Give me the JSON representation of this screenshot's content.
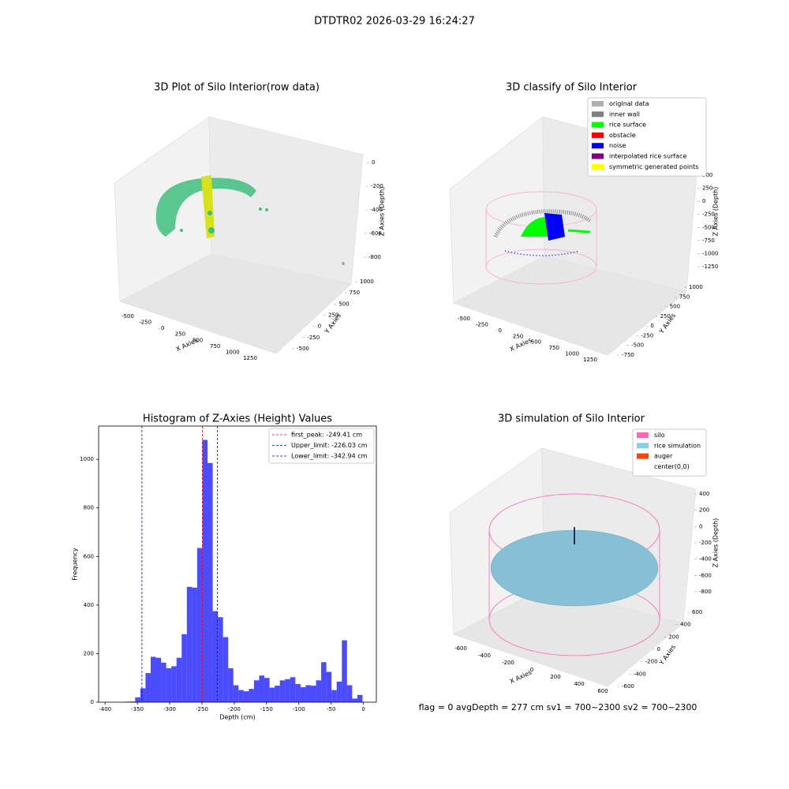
{
  "suptitle": "DTDTR02 2026-03-29 16:24:27",
  "footer": "flag = 0     avgDepth = 277 cm  sv1 = 700~2300  sv2 = 700~2300",
  "chart_data": [
    {
      "type": "scatter3d",
      "title": "3D Plot of Silo Interior(row data)",
      "xlabel": "X Axies",
      "ylabel": "Y Axies",
      "zlabel": "Z Axies (Depth)",
      "xticks": [
        -500,
        -250,
        0,
        250,
        500,
        750,
        1000,
        1250
      ],
      "yticks": [
        -500,
        -250,
        0,
        250,
        500,
        750,
        1000
      ],
      "zticks": [
        0,
        -200,
        -400,
        -600,
        -800
      ]
    },
    {
      "type": "scatter3d",
      "title": "3D classify of Silo Interior",
      "xlabel": "X Axies",
      "ylabel": "Y Axies",
      "zlabel": "Z Axies (Depth)",
      "xticks": [
        -500,
        -250,
        0,
        250,
        500,
        750,
        1000,
        1250
      ],
      "yticks": [
        -750,
        -500,
        -250,
        0,
        250,
        500,
        750,
        1000
      ],
      "zticks": [
        500,
        250,
        0,
        -250,
        -500,
        -750,
        -1000,
        -1250
      ],
      "legend": [
        {
          "name": "original data",
          "color": "#b0b0b0"
        },
        {
          "name": "inner wall",
          "color": "#808080"
        },
        {
          "name": "rice surface",
          "color": "#00ff00"
        },
        {
          "name": "obstacle",
          "color": "#ff0000"
        },
        {
          "name": "noise",
          "color": "#0000ff"
        },
        {
          "name": "interpolated rice surface",
          "color": "#800080"
        },
        {
          "name": "symmetric generated points",
          "color": "#ffff00"
        }
      ]
    },
    {
      "type": "histogram",
      "title": "Histogram of Z-Axies (Height) Values",
      "xlabel": "Depth (cm)",
      "ylabel": "Frequency",
      "color": "#0000ff",
      "alpha": 0.7,
      "bins": [
        -369.41,
        -361.41,
        -353.41,
        -345.41,
        -337.41,
        -329.41,
        -321.41,
        -313.41,
        -305.41,
        -297.41,
        -289.41,
        -281.41,
        -273.41,
        -265.41,
        -257.41,
        -249.41,
        -241.41,
        -233.41,
        -225.41,
        -217.41,
        -209.41,
        -201.41,
        -193.41,
        -185.41,
        -177.41,
        -169.41,
        -161.41,
        -153.41,
        -145.41,
        -137.41,
        -129.41,
        -121.41,
        -113.41,
        -105.41,
        -97.41,
        -89.41,
        -81.41,
        -73.41,
        -65.41,
        -57.41,
        -49.41,
        -41.41,
        -33.41,
        -25.41,
        -17.41,
        -9.41,
        -1.41
      ],
      "values": [
        2,
        3,
        20,
        57,
        120,
        187,
        183,
        163,
        140,
        148,
        183,
        280,
        475,
        472,
        635,
        1080,
        985,
        375,
        350,
        268,
        140,
        70,
        50,
        45,
        55,
        90,
        110,
        100,
        60,
        68,
        90,
        95,
        103,
        75,
        62,
        70,
        68,
        90,
        165,
        125,
        50,
        85,
        255,
        70,
        15,
        30
      ],
      "vlines": [
        {
          "name": "first_peak: -249.41 cm",
          "value": -249.41,
          "color": "#ff0000"
        },
        {
          "name": "Upper_limit: -226.03 cm",
          "value": -226.03,
          "color": "#0000ff"
        },
        {
          "name": "Lower_limit: -342.94 cm",
          "value": -342.94,
          "color": "#0000ff"
        }
      ],
      "xlim": [
        -410,
        20
      ],
      "ylim": [
        0,
        1137
      ],
      "xticks": [
        -400,
        -350,
        -300,
        -250,
        -200,
        -150,
        -100,
        -50,
        0
      ],
      "yticks": [
        0,
        200,
        400,
        600,
        800,
        1000
      ],
      "legend_position": "upper right"
    },
    {
      "type": "scatter3d",
      "title": "3D simulation of Silo Interior",
      "xlabel": "X Axies",
      "ylabel": "Y Axies",
      "zlabel": "Z Axies (Depth)",
      "xticks": [
        -600,
        -400,
        -200,
        0,
        200,
        400,
        600
      ],
      "yticks": [
        -600,
        -400,
        -200,
        0,
        200,
        400,
        600
      ],
      "zticks": [
        400,
        200,
        0,
        -200,
        -400,
        -600,
        -800
      ],
      "legend": [
        {
          "name": "silo",
          "color": "#ff69b4"
        },
        {
          "name": "rice simulation",
          "color": "#87ceeb"
        },
        {
          "name": "auger",
          "color": "#ff4500"
        },
        {
          "name": "center(0,0)",
          "color": "#ffffff"
        }
      ]
    }
  ]
}
